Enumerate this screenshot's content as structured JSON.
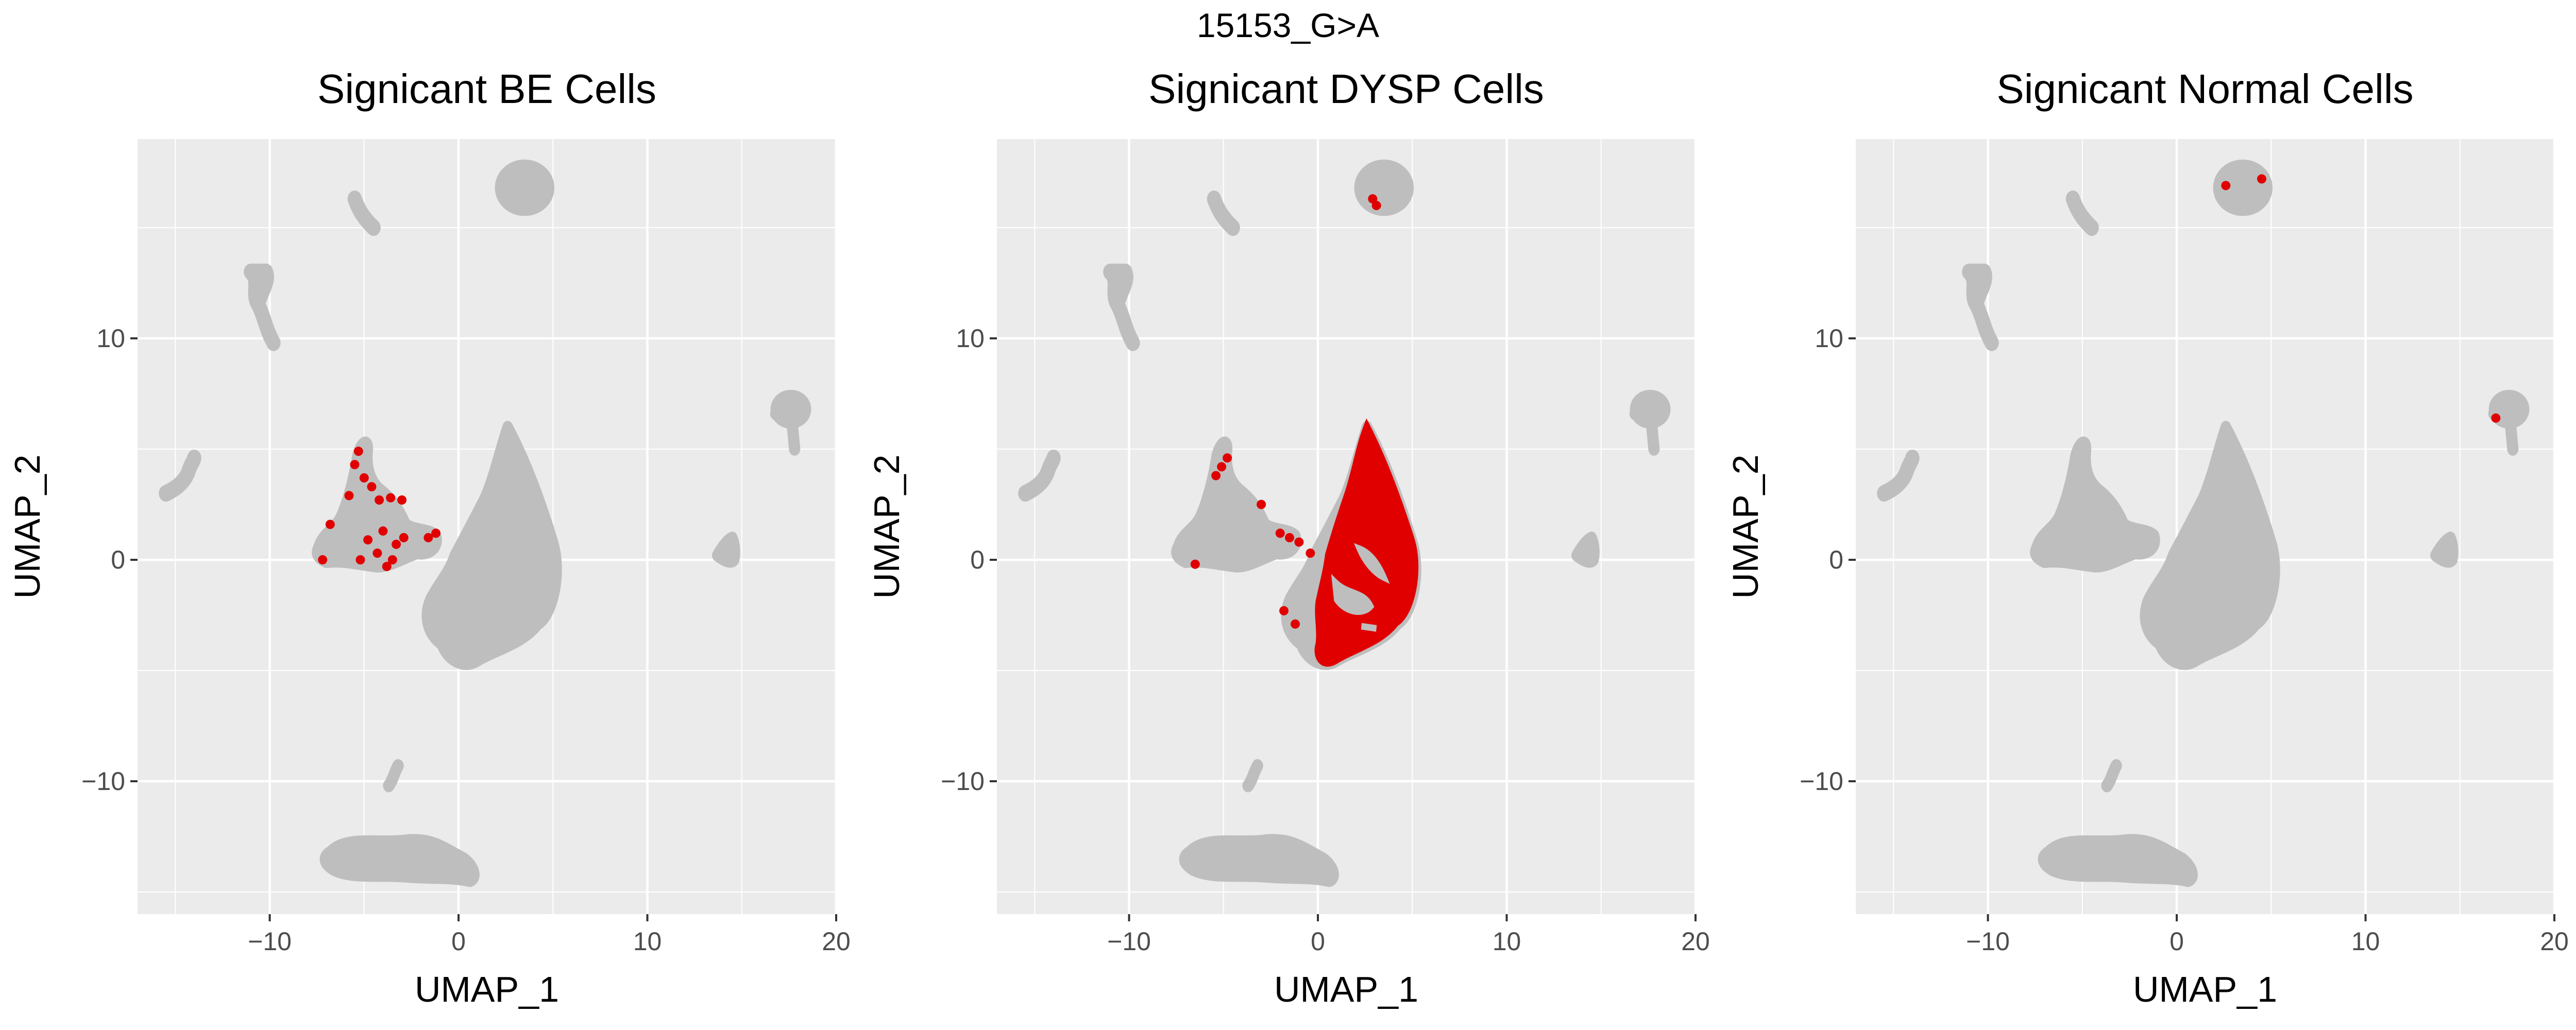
{
  "figure": {
    "title": "15153_G>A"
  },
  "colors": {
    "panel_bg": "#EBEBEB",
    "grid": "#FFFFFF",
    "background_cells": "#BEBEBE",
    "significant_cells": "#E00000",
    "text": "#000000",
    "tick_text": "#4D4D4D"
  },
  "chart_data": [
    {
      "type": "scatter",
      "title": "Signicant BE Cells",
      "xlabel": "UMAP_1",
      "ylabel": "UMAP_2",
      "xlim": [
        -17,
        20
      ],
      "ylim": [
        -16,
        19
      ],
      "xticks": [
        -10,
        0,
        10,
        20
      ],
      "yticks": [
        -10,
        0,
        10
      ],
      "x_tick_labels": [
        "−10",
        "0",
        "10",
        "20"
      ],
      "y_tick_labels": [
        "−10",
        "0",
        "10"
      ],
      "grid": true,
      "legend": "none",
      "significant_points": {
        "x": [
          -5.3,
          -5.5,
          -5.0,
          -4.6,
          -5.8,
          -4.2,
          -3.6,
          -3.0,
          -6.8,
          -4.8,
          -4.0,
          -3.3,
          -2.9,
          -1.6,
          -1.2,
          -4.3,
          -3.5,
          -5.2,
          -7.2,
          -3.8
        ],
        "y": [
          4.9,
          4.3,
          3.7,
          3.3,
          2.9,
          2.7,
          2.8,
          2.7,
          1.6,
          0.9,
          1.3,
          0.7,
          1.0,
          1.0,
          1.2,
          0.3,
          0.0,
          0.0,
          0.0,
          -0.3
        ]
      }
    },
    {
      "type": "scatter",
      "title": "Signicant DYSP Cells",
      "xlabel": "UMAP_1",
      "ylabel": "UMAP_2",
      "xlim": [
        -17,
        20
      ],
      "ylim": [
        -16,
        19
      ],
      "xticks": [
        -10,
        0,
        10,
        20
      ],
      "yticks": [
        -10,
        0,
        10
      ],
      "x_tick_labels": [
        "−10",
        "0",
        "10",
        "20"
      ],
      "y_tick_labels": [
        "−10",
        "0",
        "10"
      ],
      "grid": true,
      "legend": "none",
      "significant_points": {
        "x": [
          2.9,
          3.1,
          -4.8,
          -5.1,
          -5.4,
          -3.0,
          -2.0,
          -1.5,
          -1.0,
          -0.4,
          -6.5,
          -1.8,
          -1.2
        ],
        "y": [
          16.3,
          16.0,
          4.6,
          4.2,
          3.8,
          2.5,
          1.2,
          1.0,
          0.8,
          0.3,
          -0.2,
          -2.3,
          -2.9
        ]
      },
      "significant_region": "dense red cluster spanning UMAP_1 0 to 5.5, UMAP_2 -4.8 to 6"
    },
    {
      "type": "scatter",
      "title": "Signicant Normal Cells",
      "xlabel": "UMAP_1",
      "ylabel": "UMAP_2",
      "xlim": [
        -17,
        20
      ],
      "ylim": [
        -16,
        19
      ],
      "xticks": [
        -10,
        0,
        10,
        20
      ],
      "yticks": [
        -10,
        0,
        10
      ],
      "x_tick_labels": [
        "−10",
        "0",
        "10",
        "20"
      ],
      "y_tick_labels": [
        "−10",
        "0",
        "10"
      ],
      "grid": true,
      "legend": "none",
      "significant_points": {
        "x": [
          2.6,
          4.5,
          16.9
        ],
        "y": [
          16.9,
          17.2,
          6.4
        ]
      }
    }
  ]
}
